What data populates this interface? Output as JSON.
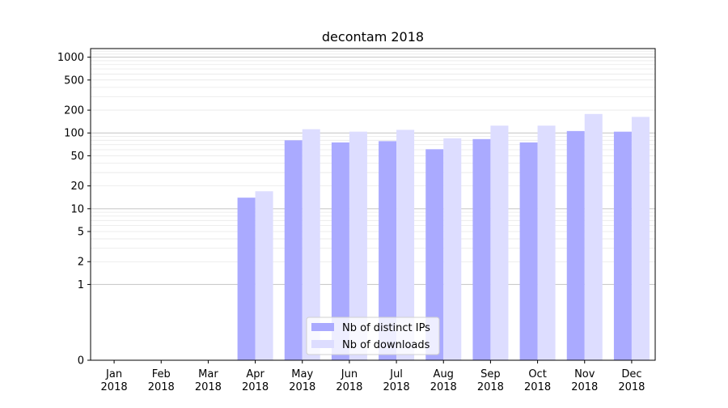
{
  "chart_data": {
    "type": "bar",
    "title": "decontam 2018",
    "xlabel": "",
    "ylabel": "",
    "scale": "symlog",
    "ylim": [
      0,
      1300
    ],
    "categories": [
      "Jan\n2018",
      "Feb\n2018",
      "Mar\n2018",
      "Apr\n2018",
      "May\n2018",
      "Jun\n2018",
      "Jul\n2018",
      "Aug\n2018",
      "Sep\n2018",
      "Oct\n2018",
      "Nov\n2018",
      "Dec\n2018"
    ],
    "series": [
      {
        "name": "Nb of distinct IPs",
        "color": "#aaaaff",
        "values": [
          0,
          0,
          0,
          14,
          80,
          75,
          78,
          61,
          83,
          75,
          106,
          104
        ]
      },
      {
        "name": "Nb of downloads",
        "color": "#ddddff",
        "values": [
          0,
          0,
          0,
          17,
          112,
          104,
          110,
          85,
          125,
          125,
          178,
          163
        ]
      }
    ],
    "yticks": [
      0,
      1,
      2,
      5,
      10,
      20,
      50,
      100,
      200,
      500,
      1000
    ],
    "ytick_labels": [
      "0",
      "1",
      "2",
      "5",
      "10",
      "20",
      "50",
      "100",
      "200",
      "500",
      "1000"
    ],
    "grid": true,
    "legend_position": "bottom-center"
  }
}
